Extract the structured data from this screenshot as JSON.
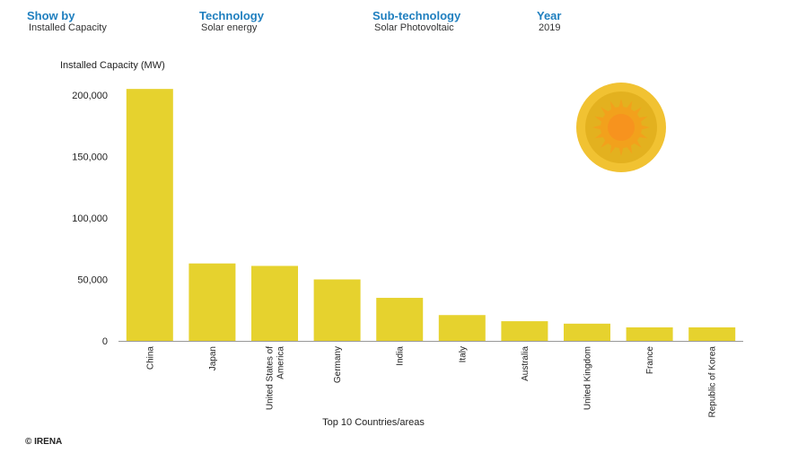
{
  "filters": {
    "show_by": {
      "label": "Show by",
      "value": "Installed Capacity"
    },
    "technology": {
      "label": "Technology",
      "value": "Solar energy"
    },
    "sub_technology": {
      "label": "Sub-technology",
      "value": "Solar Photovoltaic"
    },
    "year": {
      "label": "Year",
      "value": "2019"
    }
  },
  "chart_data": {
    "type": "bar",
    "title": "",
    "ylabel": "Installed Capacity (MW)",
    "xlabel": "Top 10 Countries/areas",
    "ylim": [
      0,
      200000
    ],
    "yticks": [
      0,
      50000,
      100000,
      150000,
      200000
    ],
    "ytick_labels": [
      "0",
      "50,000",
      "100,000",
      "150,000",
      "200,000"
    ],
    "categories": [
      [
        "China"
      ],
      [
        "Japan"
      ],
      [
        "United States of",
        "America"
      ],
      [
        "Germany"
      ],
      [
        "India"
      ],
      [
        "Italy"
      ],
      [
        "Australia"
      ],
      [
        "United Kingdom"
      ],
      [
        "France"
      ],
      [
        "Republic of Korea"
      ]
    ],
    "values": [
      205000,
      63000,
      61000,
      50000,
      35000,
      21000,
      16000,
      14000,
      11000,
      11000
    ],
    "bar_color": "#e6d22e",
    "grid": false
  },
  "sun_icon": "sun-icon",
  "sun_colors": {
    "outer": "#f1c232",
    "ring": "#e3b11f",
    "inner": "#f2a11c",
    "core": "#f7931e"
  },
  "footer": {
    "copyright": "© IRENA"
  }
}
